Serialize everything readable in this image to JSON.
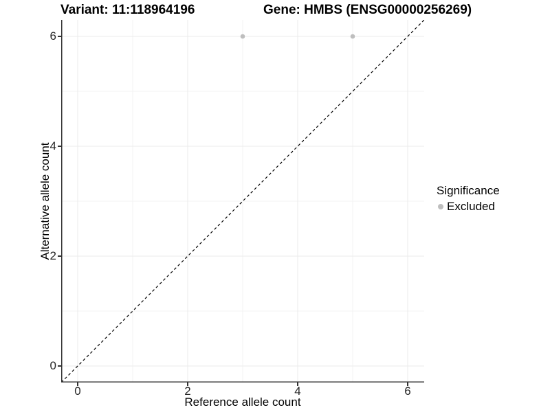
{
  "header": {
    "variant_title": "Variant: 11:118964196",
    "gene_title": "Gene: HMBS (ENSG00000256269)"
  },
  "legend": {
    "title": "Significance",
    "items": [
      {
        "label": "Excluded",
        "color": "#bebebe"
      }
    ]
  },
  "chart_data": {
    "type": "scatter",
    "title": "Variant: 11:118964196 | Gene: HMBS (ENSG00000256269)",
    "xlabel": "Reference allele count",
    "ylabel": "Alternative allele count",
    "xlim": [
      -0.3,
      6.3
    ],
    "ylim": [
      -0.3,
      6.3
    ],
    "xticks": [
      0,
      2,
      4,
      6
    ],
    "yticks": [
      0,
      2,
      4,
      6
    ],
    "xticks_minor": [
      1,
      3,
      5
    ],
    "yticks_minor": [
      1,
      3,
      5
    ],
    "grid": "on",
    "legend_position": "right",
    "series": [
      {
        "name": "Excluded",
        "color": "#bebebe",
        "points": [
          {
            "x": 3,
            "y": 6
          },
          {
            "x": 5,
            "y": 6
          }
        ]
      }
    ],
    "reference_line": {
      "slope": 1,
      "intercept": 0,
      "style": "dashed",
      "color": "#000000"
    }
  },
  "colors": {
    "background": "#ffffff",
    "grid_major": "#ebebeb",
    "grid_minor": "#f3f3f3",
    "axis_line": "#333333",
    "tick_text": "#262626",
    "text": "#000000",
    "excluded_point": "#bebebe"
  }
}
